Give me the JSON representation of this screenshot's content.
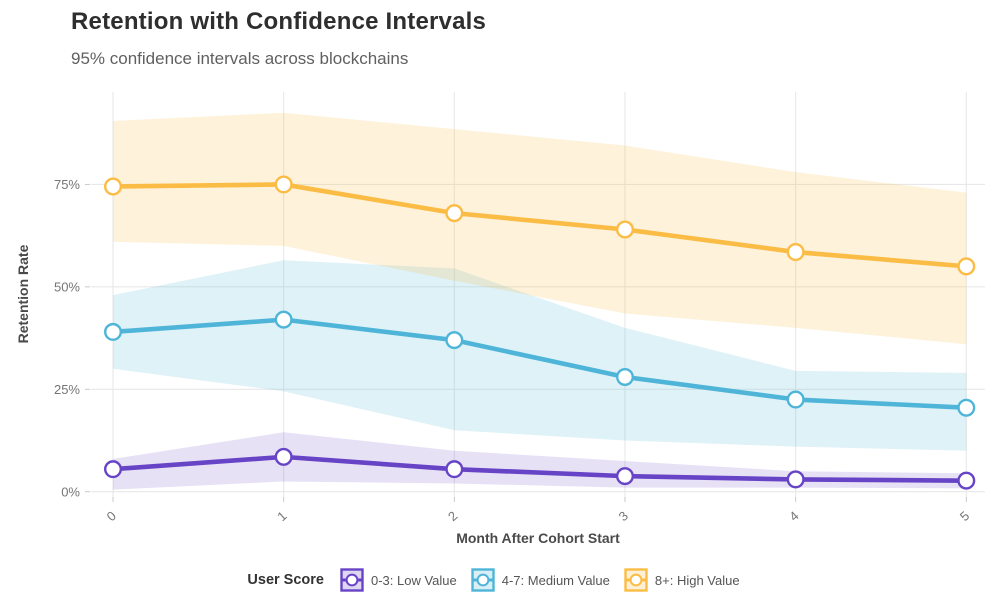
{
  "header": {
    "title": "Retention with Confidence Intervals",
    "subtitle": "95% confidence intervals across blockchains"
  },
  "chart_data": {
    "type": "line",
    "title": "Retention with Confidence Intervals",
    "subtitle": "95% confidence intervals across blockchains",
    "xlabel": "Month After Cohort Start",
    "ylabel": "Retention Rate",
    "x": [
      0,
      1,
      2,
      3,
      4,
      5
    ],
    "x_labels": [
      "0",
      "1",
      "2",
      "3",
      "4",
      "5"
    ],
    "y_ticks": [
      "0%",
      "25%",
      "50%",
      "75%"
    ],
    "y_tick_values": [
      0,
      25,
      50,
      75
    ],
    "ylim": [
      -1.5,
      97.5
    ],
    "grid": true,
    "confidence_level": "95%",
    "legend_title": "User Score",
    "legend_position": "bottom",
    "series": [
      {
        "name": "0-3: Low Value",
        "color": "#6744C6",
        "band_opacity": 0.16,
        "values": [
          5.5,
          8.5,
          5.5,
          3.8,
          3.0,
          2.7
        ],
        "lower": [
          0.5,
          2.5,
          2.0,
          1.0,
          1.0,
          0.8
        ],
        "upper": [
          8.0,
          14.5,
          10.0,
          7.5,
          5.0,
          4.5
        ]
      },
      {
        "name": "4-7: Medium Value",
        "color": "#4FB5D8",
        "band_opacity": 0.18,
        "values": [
          39,
          42,
          37,
          28,
          22.5,
          20.5
        ],
        "lower": [
          30,
          24.5,
          15,
          12.5,
          11,
          10
        ],
        "upper": [
          48,
          56.5,
          54.5,
          40,
          29.5,
          29
        ]
      },
      {
        "name": "8+: High Value",
        "color": "#FBBC45",
        "band_opacity": 0.2,
        "values": [
          74.5,
          75,
          68,
          64,
          58.5,
          55
        ],
        "lower": [
          61,
          60,
          51.5,
          43.5,
          40,
          36
        ],
        "upper": [
          90.5,
          92.5,
          88.5,
          84.5,
          78,
          73
        ]
      }
    ]
  }
}
